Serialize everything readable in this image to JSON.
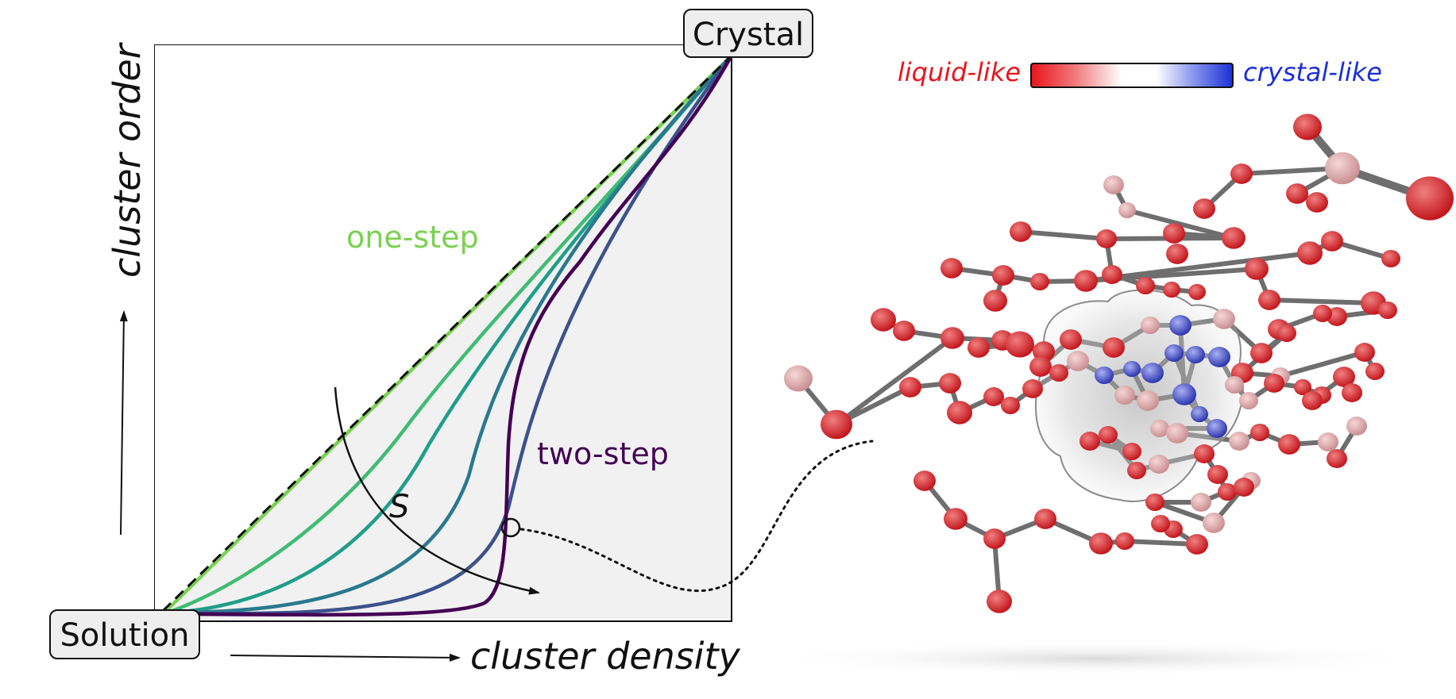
{
  "diagram": {
    "state_solution": "Solution",
    "state_crystal": "Crystal",
    "xlabel": "cluster density",
    "ylabel": "cluster order",
    "label_one_step": "one-step",
    "label_two_step": "two-step",
    "param_label": "S",
    "pathway_colors": [
      "#7ad151",
      "#3fbc73",
      "#1f9e89",
      "#2a788e",
      "#3b528b",
      "#440154"
    ],
    "label_one_step_color": "#7ad151",
    "label_two_step_color": "#440154"
  },
  "colorbar": {
    "low_label": "liquid-like",
    "high_label": "crystal-like",
    "low_color": "#e8141c",
    "mid_color": "#ffffff",
    "high_color": "#1a2fd6"
  }
}
